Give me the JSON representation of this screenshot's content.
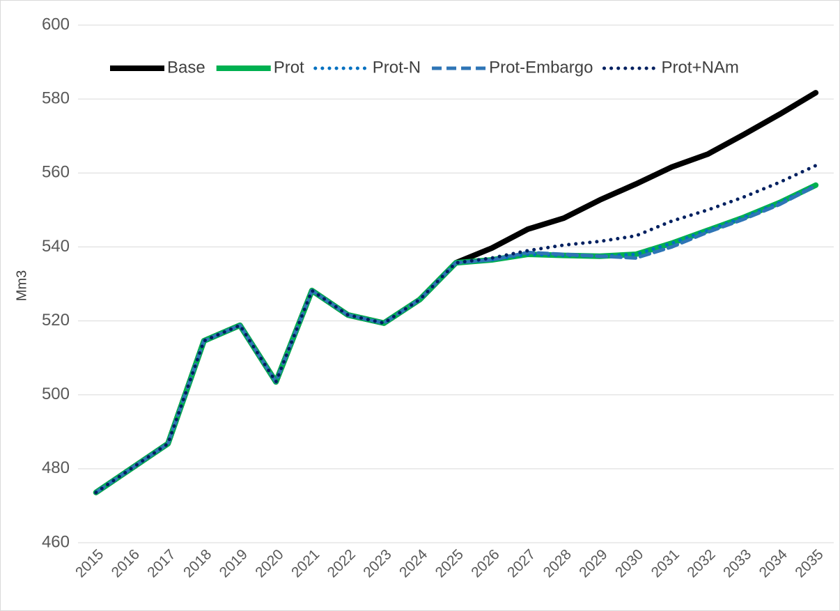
{
  "chart_data": {
    "type": "line",
    "y_label": "Mm3",
    "categories": [
      "2015",
      "2016",
      "2017",
      "2018",
      "2019",
      "2020",
      "2021",
      "2022",
      "2023",
      "2024",
      "2025",
      "2026",
      "2027",
      "2028",
      "2029",
      "2030",
      "2031",
      "2032",
      "2033",
      "2034",
      "2035"
    ],
    "series": [
      {
        "name": "Base",
        "color": "#000000",
        "style": "solid",
        "values": [
          473.6,
          480.2,
          486.8,
          514.6,
          518.8,
          503.5,
          528.2,
          521.6,
          519.4,
          525.8,
          535.7,
          539.7,
          544.8,
          547.8,
          552.7,
          557.0,
          561.6,
          565.1,
          570.4,
          575.9,
          581.7
        ]
      },
      {
        "name": "Prot",
        "color": "#00b050",
        "style": "solid",
        "values": [
          473.6,
          480.2,
          486.8,
          514.6,
          518.8,
          503.5,
          528.2,
          521.6,
          519.4,
          525.8,
          535.7,
          536.5,
          538.0,
          537.7,
          537.5,
          538.0,
          541.0,
          544.5,
          548.0,
          552.0,
          556.7
        ]
      },
      {
        "name": "Prot-N",
        "color": "#0070c0",
        "style": "dotted",
        "values": [
          473.6,
          480.2,
          486.8,
          514.6,
          518.8,
          503.5,
          528.2,
          521.6,
          519.4,
          525.8,
          535.7,
          536.5,
          538.0,
          537.7,
          537.5,
          538.0,
          541.0,
          544.5,
          548.0,
          552.0,
          556.7
        ]
      },
      {
        "name": "Prot-Embargo",
        "color": "#2e75b6",
        "style": "dashed",
        "values": [
          473.6,
          480.2,
          486.8,
          514.6,
          518.8,
          503.5,
          528.2,
          521.6,
          519.4,
          525.8,
          535.7,
          536.5,
          538.5,
          538.0,
          537.5,
          537.0,
          540.0,
          544.0,
          547.5,
          551.5,
          556.5
        ]
      },
      {
        "name": "Prot+NAm",
        "color": "#002060",
        "style": "dotted",
        "values": [
          473.6,
          480.2,
          486.8,
          514.6,
          518.8,
          503.5,
          528.2,
          521.6,
          519.4,
          525.8,
          535.7,
          537.0,
          539.0,
          540.5,
          541.5,
          543.0,
          547.0,
          550.0,
          553.5,
          557.5,
          562.0
        ]
      }
    ],
    "ylim": [
      460,
      600
    ],
    "yticks": [
      460,
      480,
      500,
      520,
      540,
      560,
      580,
      600
    ],
    "grid": true,
    "legend": "top"
  }
}
